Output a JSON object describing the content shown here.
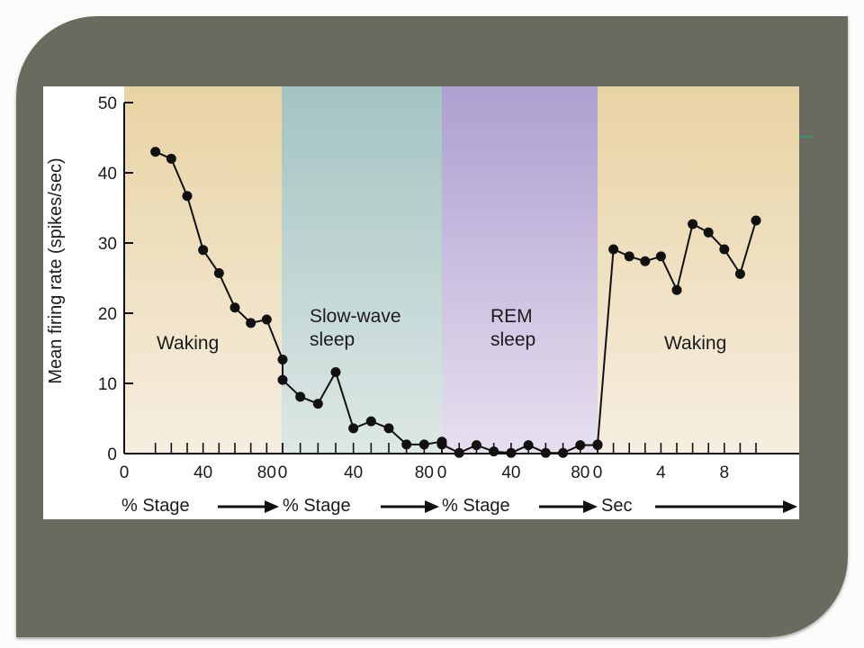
{
  "colors": {
    "slide_frame": "#696b5f",
    "waking_band": "#e9d6a8",
    "slow_wave_band": "#a7c7c5",
    "rem_band": "#b3a6d3",
    "data_series": "#111111"
  },
  "chart_data": {
    "type": "line",
    "ylabel": "Mean firing rate (spikes/sec)",
    "ylim": [
      0,
      50
    ],
    "y_ticks": [
      "0",
      "10",
      "20",
      "30",
      "40",
      "50"
    ],
    "regions": [
      {
        "name": "Waking",
        "label_lines": [
          "Waking"
        ],
        "x_unit": "% Stage",
        "x_ticks": [
          "0",
          "40",
          "80"
        ]
      },
      {
        "name": "Slow-wave sleep",
        "label_lines": [
          "Slow-wave",
          "sleep"
        ],
        "x_unit": "% Stage",
        "x_ticks": [
          "0",
          "40",
          "80"
        ]
      },
      {
        "name": "REM sleep",
        "label_lines": [
          "REM",
          "sleep"
        ],
        "x_unit": "% Stage",
        "x_ticks": [
          "0",
          "40",
          "80"
        ]
      },
      {
        "name": "Waking",
        "label_lines": [
          "Waking"
        ],
        "x_unit": "Sec",
        "x_ticks": [
          "0",
          "4",
          "8"
        ]
      }
    ],
    "series": [
      {
        "segments": [
          {
            "region": 0,
            "x": [
              10,
              20,
              30,
              40,
              50,
              60,
              70,
              80,
              90
            ],
            "y": [
              43,
              42,
              36.7,
              29,
              25.7,
              20.8,
              18.6,
              19.1,
              13.4
            ]
          },
          {
            "region": 1,
            "x": [
              0,
              10,
              20,
              30,
              40,
              50,
              60,
              70,
              80,
              90
            ],
            "y": [
              10.5,
              8.1,
              7.1,
              11.6,
              3.6,
              4.6,
              3.6,
              1.3,
              1.3,
              1.7
            ]
          },
          {
            "region": 2,
            "x": [
              0,
              10,
              20,
              30,
              40,
              50,
              60,
              70,
              80,
              90
            ],
            "y": [
              1.3,
              0.1,
              1.2,
              0.3,
              0.1,
              1.2,
              0.1,
              0.1,
              1.2,
              1.2
            ]
          },
          {
            "region": 3,
            "x": [
              0,
              1,
              2,
              3,
              4,
              5,
              6,
              7,
              8,
              9,
              10
            ],
            "y": [
              1.3,
              29.1,
              28.1,
              27.4,
              28.1,
              23.3,
              32.7,
              31.5,
              29.1,
              25.6,
              33.2
            ]
          }
        ]
      }
    ]
  }
}
